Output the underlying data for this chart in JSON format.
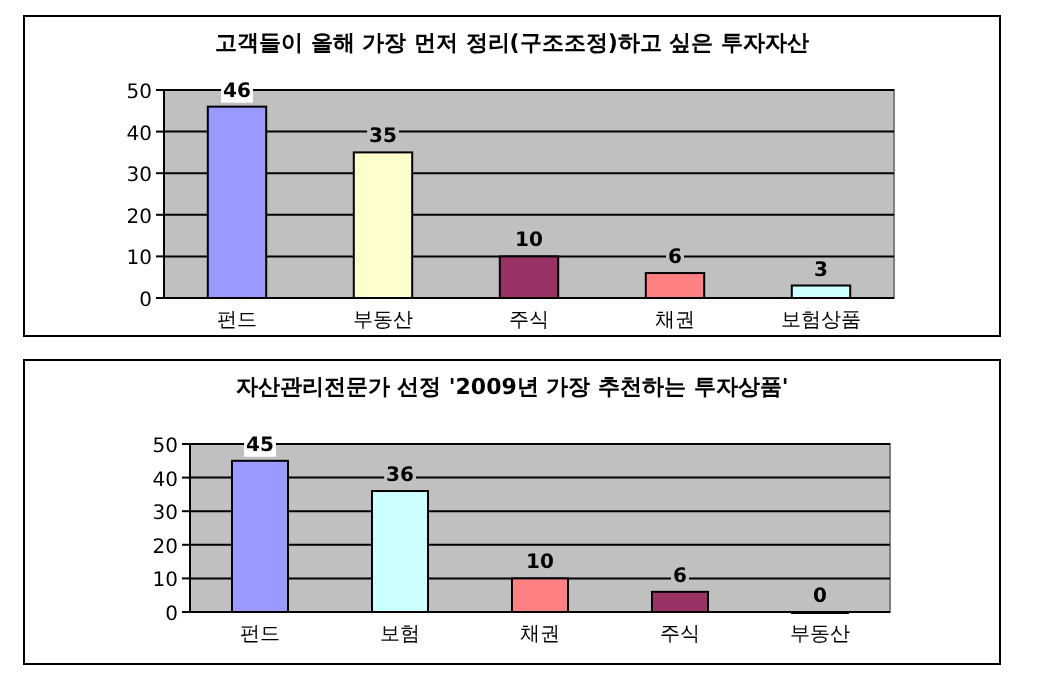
{
  "chart_data": [
    {
      "type": "bar",
      "title": "고객들이 올해 가장 먼저 정리(구조조정)하고 싶은 투자자산",
      "categories": [
        "펀드",
        "부동산",
        "주식",
        "채권",
        "보험상품"
      ],
      "values": [
        46,
        35,
        10,
        6,
        3
      ],
      "colors": [
        "#9999ff",
        "#ffffcc",
        "#993366",
        "#ff8080",
        "#ccffff"
      ],
      "ylim": [
        0,
        50
      ],
      "yticks": [
        0,
        10,
        20,
        30,
        40,
        50
      ],
      "grid": "y",
      "data_labels": true
    },
    {
      "type": "bar",
      "title": "자산관리전문가 선정 '2009년 가장 추천하는 투자상품'",
      "categories": [
        "펀드",
        "보험",
        "채권",
        "주식",
        "부동산"
      ],
      "values": [
        45,
        36,
        10,
        6,
        0
      ],
      "colors": [
        "#9999ff",
        "#ccffff",
        "#ff8080",
        "#993366",
        "#ffffcc"
      ],
      "ylim": [
        0,
        50
      ],
      "yticks": [
        0,
        10,
        20,
        30,
        40,
        50
      ],
      "grid": "y",
      "data_labels": true
    }
  ]
}
